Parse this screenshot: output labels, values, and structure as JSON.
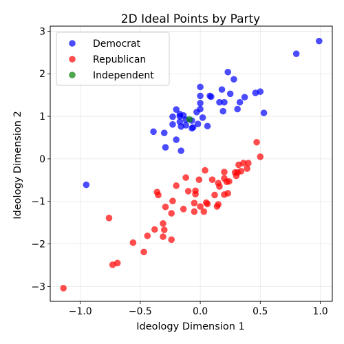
{
  "chart_data": {
    "type": "scatter",
    "title": "2D Ideal Points by Party",
    "xlabel": "Ideology Dimension 1",
    "ylabel": "Ideology Dimension 2",
    "xlim": [
      -1.25,
      1.1
    ],
    "ylim": [
      -3.35,
      3.12
    ],
    "xticks": [
      -1.0,
      -0.5,
      0.0,
      0.5,
      1.0
    ],
    "xtick_labels": [
      "−1.0",
      "−0.5",
      "0.0",
      "0.5",
      "1.0"
    ],
    "yticks": [
      -3,
      -2,
      -1,
      0,
      1,
      2,
      3
    ],
    "ytick_labels": [
      "−3",
      "−2",
      "−1",
      "0",
      "1",
      "2",
      "3"
    ],
    "grid": true,
    "legend_position": "top-left",
    "series": [
      {
        "name": "Democrat",
        "color": "#0000ff",
        "points": [
          [
            0.99,
            2.77
          ],
          [
            0.8,
            2.47
          ],
          [
            0.23,
            2.04
          ],
          [
            0.28,
            1.87
          ],
          [
            0.0,
            1.69
          ],
          [
            0.18,
            1.63
          ],
          [
            0.5,
            1.58
          ],
          [
            0.46,
            1.55
          ],
          [
            0.25,
            1.53
          ],
          [
            0.08,
            1.48
          ],
          [
            0.09,
            1.46
          ],
          [
            0.0,
            1.48
          ],
          [
            0.37,
            1.45
          ],
          [
            0.33,
            1.33
          ],
          [
            0.2,
            1.33
          ],
          [
            0.16,
            1.33
          ],
          [
            0.0,
            1.31
          ],
          [
            0.31,
            1.17
          ],
          [
            0.19,
            1.12
          ],
          [
            0.53,
            1.08
          ],
          [
            -0.2,
            1.16
          ],
          [
            0.0,
            1.17
          ],
          [
            -0.03,
            1.1
          ],
          [
            -0.17,
            1.05
          ],
          [
            -0.14,
            1.02
          ],
          [
            -0.17,
            1.0
          ],
          [
            -0.23,
            0.99
          ],
          [
            0.02,
            0.97
          ],
          [
            -0.12,
            0.92
          ],
          [
            -0.17,
            0.87
          ],
          [
            -0.07,
            0.9
          ],
          [
            -0.12,
            0.79
          ],
          [
            -0.16,
            0.76
          ],
          [
            -0.23,
            0.81
          ],
          [
            -0.06,
            0.74
          ],
          [
            -0.02,
            0.82
          ],
          [
            0.06,
            0.77
          ],
          [
            -0.07,
            0.72
          ],
          [
            -0.39,
            0.64
          ],
          [
            -0.3,
            0.61
          ],
          [
            -0.2,
            0.45
          ],
          [
            -0.29,
            0.27
          ],
          [
            -0.16,
            0.19
          ],
          [
            -0.95,
            -0.61
          ]
        ]
      },
      {
        "name": "Republican",
        "color": "#ff0000",
        "points": [
          [
            0.47,
            0.39
          ],
          [
            0.5,
            0.05
          ],
          [
            0.36,
            -0.1
          ],
          [
            0.4,
            -0.1
          ],
          [
            0.32,
            -0.14
          ],
          [
            0.39,
            -0.23
          ],
          [
            0.34,
            -0.29
          ],
          [
            0.29,
            -0.32
          ],
          [
            0.31,
            -0.32
          ],
          [
            0.2,
            -0.31
          ],
          [
            0.3,
            -0.4
          ],
          [
            0.04,
            -0.27
          ],
          [
            0.2,
            -0.46
          ],
          [
            0.22,
            -0.54
          ],
          [
            0.24,
            -0.53
          ],
          [
            0.1,
            -0.49
          ],
          [
            -0.12,
            -0.44
          ],
          [
            0.15,
            -0.57
          ],
          [
            -0.01,
            -0.49
          ],
          [
            -0.2,
            -0.63
          ],
          [
            0.16,
            -0.65
          ],
          [
            -0.1,
            -0.76
          ],
          [
            -0.04,
            -0.75
          ],
          [
            -0.36,
            -0.78
          ],
          [
            -0.04,
            -0.83
          ],
          [
            -0.35,
            -0.85
          ],
          [
            0.12,
            -0.85
          ],
          [
            0.2,
            -0.84
          ],
          [
            0.23,
            -0.81
          ],
          [
            -0.23,
            -0.99
          ],
          [
            0.05,
            -1.03
          ],
          [
            0.06,
            -1.06
          ],
          [
            0.15,
            -1.07
          ],
          [
            0.14,
            -1.12
          ],
          [
            -0.05,
            -1.04
          ],
          [
            -0.29,
            -1.13
          ],
          [
            -0.14,
            -1.18
          ],
          [
            0.0,
            -1.12
          ],
          [
            -0.05,
            -1.24
          ],
          [
            0.03,
            -1.24
          ],
          [
            -0.24,
            -1.28
          ],
          [
            -0.31,
            -1.52
          ],
          [
            -0.76,
            -1.39
          ],
          [
            -0.38,
            -1.66
          ],
          [
            -0.3,
            -1.67
          ],
          [
            -0.44,
            -1.81
          ],
          [
            -0.31,
            -1.83
          ],
          [
            -0.24,
            -1.9
          ],
          [
            -0.56,
            -1.97
          ],
          [
            -0.47,
            -2.19
          ],
          [
            -0.69,
            -2.45
          ],
          [
            -0.73,
            -2.49
          ],
          [
            -1.14,
            -3.04
          ]
        ]
      },
      {
        "name": "Independent",
        "color": "#008000",
        "points": [
          [
            -0.09,
            0.93
          ]
        ]
      }
    ]
  }
}
